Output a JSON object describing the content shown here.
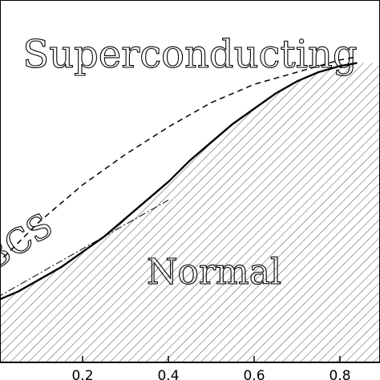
{
  "chart_data": {
    "type": "line",
    "title": "",
    "xlabel": "",
    "ylabel": "",
    "xlim": [
      0.0,
      0.84
    ],
    "ylim": [
      0.0,
      1.0
    ],
    "x_ticks": [
      0.2,
      0.4,
      0.6,
      0.8
    ],
    "x_tick_labels": [
      "0.2",
      "0.4",
      "0.6",
      "0.8"
    ],
    "regions": [
      {
        "label": "Superconducting"
      },
      {
        "label": "Normal"
      }
    ],
    "series": [
      {
        "style": "solid",
        "x": [
          0.0,
          0.05,
          0.1,
          0.15,
          0.2,
          0.25,
          0.3,
          0.35,
          0.4,
          0.45,
          0.5,
          0.55,
          0.6,
          0.65,
          0.7,
          0.75,
          0.8,
          0.84
        ],
        "y": [
          0.0,
          0.03,
          0.07,
          0.11,
          0.16,
          0.21,
          0.27,
          0.33,
          0.39,
          0.46,
          0.52,
          0.58,
          0.63,
          0.68,
          0.72,
          0.75,
          0.77,
          0.78
        ]
      },
      {
        "name": "BCS",
        "style": "dashed",
        "x": [
          0.0,
          0.1,
          0.2,
          0.3,
          0.4,
          0.5,
          0.6,
          0.7,
          0.8,
          0.84
        ],
        "y": [
          0.12,
          0.26,
          0.38,
          0.48,
          0.57,
          0.65,
          0.71,
          0.75,
          0.79,
          0.8
        ]
      },
      {
        "style": "dash-dot",
        "x": [
          0.0,
          0.1,
          0.2,
          0.3,
          0.4
        ],
        "y": [
          0.01,
          0.09,
          0.17,
          0.25,
          0.33
        ]
      }
    ]
  }
}
